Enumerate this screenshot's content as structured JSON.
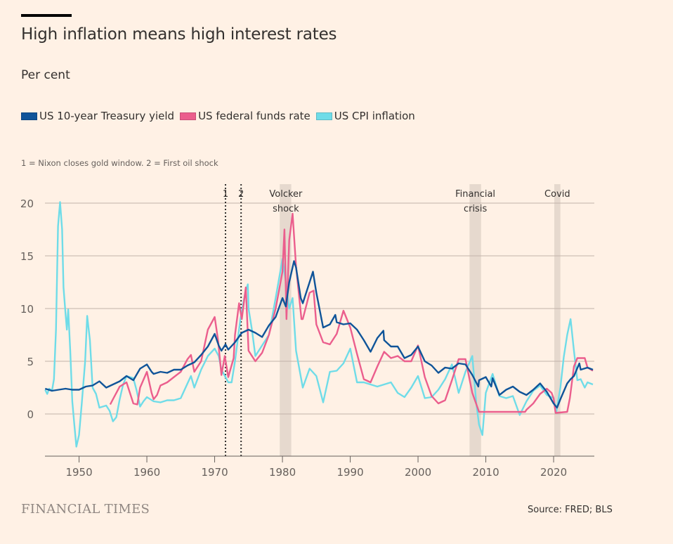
{
  "header": {
    "title": "High inflation means high interest rates",
    "subtitle": "Per cent",
    "note": "1 = Nixon closes gold window. 2 = First oil shock"
  },
  "legend": [
    {
      "label": "US 10-year Treasury yield",
      "color": "#0f5499"
    },
    {
      "label": "US federal funds rate",
      "color": "#eb5e8d"
    },
    {
      "label": "US CPI inflation",
      "color": "#6fdce8"
    }
  ],
  "footer": {
    "brand": "FINANCIAL TIMES",
    "source": "Source: FRED; BLS"
  },
  "chart_data": {
    "type": "line",
    "title": "High inflation means high interest rates",
    "ylabel": "Per cent",
    "xlabel": "",
    "xlim": [
      1945,
      2026
    ],
    "ylim": [
      -4,
      21
    ],
    "yticks": [
      0,
      5,
      10,
      15,
      20
    ],
    "xticks": [
      1950,
      1960,
      1970,
      1980,
      1990,
      2000,
      2010,
      2020
    ],
    "grid": true,
    "legend_position": "top-left",
    "vlines": [
      {
        "label": "1",
        "x": 1971.6,
        "style": "dotted"
      },
      {
        "label": "2",
        "x": 1973.9,
        "style": "dotted"
      }
    ],
    "shaded_bands": [
      {
        "label": "Volcker shock",
        "label_lines": [
          "Volcker",
          "shock"
        ],
        "from": 1979.6,
        "to": 1981.3
      },
      {
        "label": "Financial crisis",
        "label_lines": [
          "Financial",
          "crisis"
        ],
        "from": 2007.6,
        "to": 2009.3
      },
      {
        "label": "Covid",
        "label_lines": [
          "Covid"
        ],
        "from": 2020.1,
        "to": 2021.0
      }
    ],
    "series": [
      {
        "name": "US 10-year Treasury yield",
        "color": "#0f5499",
        "points": [
          [
            1945,
            2.4
          ],
          [
            1946,
            2.2
          ],
          [
            1947,
            2.3
          ],
          [
            1948,
            2.4
          ],
          [
            1949,
            2.3
          ],
          [
            1950,
            2.3
          ],
          [
            1951,
            2.6
          ],
          [
            1952,
            2.7
          ],
          [
            1953,
            3.1
          ],
          [
            1954,
            2.5
          ],
          [
            1955,
            2.8
          ],
          [
            1956,
            3.1
          ],
          [
            1957,
            3.6
          ],
          [
            1958,
            3.2
          ],
          [
            1959,
            4.3
          ],
          [
            1960,
            4.7
          ],
          [
            1960.7,
            4.0
          ],
          [
            1961,
            3.8
          ],
          [
            1962,
            4.0
          ],
          [
            1963,
            3.9
          ],
          [
            1964,
            4.2
          ],
          [
            1965,
            4.2
          ],
          [
            1966,
            4.6
          ],
          [
            1967,
            4.9
          ],
          [
            1968,
            5.6
          ],
          [
            1969,
            6.4
          ],
          [
            1970,
            7.6
          ],
          [
            1970.6,
            6.5
          ],
          [
            1971,
            6.0
          ],
          [
            1971.6,
            6.6
          ],
          [
            1972,
            6.1
          ],
          [
            1973,
            6.8
          ],
          [
            1974,
            7.7
          ],
          [
            1975,
            8.0
          ],
          [
            1976,
            7.7
          ],
          [
            1977,
            7.3
          ],
          [
            1978,
            8.4
          ],
          [
            1979,
            9.2
          ],
          [
            1980,
            11.0
          ],
          [
            1980.5,
            10.2
          ],
          [
            1981,
            12.5
          ],
          [
            1981.7,
            14.5
          ],
          [
            1982,
            13.9
          ],
          [
            1982.7,
            11.0
          ],
          [
            1983,
            10.5
          ],
          [
            1984,
            12.5
          ],
          [
            1984.5,
            13.5
          ],
          [
            1985,
            11.5
          ],
          [
            1986,
            8.2
          ],
          [
            1987,
            8.5
          ],
          [
            1987.8,
            9.4
          ],
          [
            1988,
            8.7
          ],
          [
            1989,
            8.5
          ],
          [
            1990,
            8.6
          ],
          [
            1991,
            8.0
          ],
          [
            1992,
            7.0
          ],
          [
            1993,
            5.9
          ],
          [
            1994,
            7.2
          ],
          [
            1994.9,
            7.9
          ],
          [
            1995,
            7.0
          ],
          [
            1996,
            6.4
          ],
          [
            1997,
            6.4
          ],
          [
            1998,
            5.3
          ],
          [
            1999,
            5.6
          ],
          [
            2000,
            6.4
          ],
          [
            2001,
            5.0
          ],
          [
            2002,
            4.6
          ],
          [
            2003,
            3.9
          ],
          [
            2004,
            4.4
          ],
          [
            2005,
            4.3
          ],
          [
            2006,
            4.8
          ],
          [
            2007,
            4.7
          ],
          [
            2008,
            3.7
          ],
          [
            2008.9,
            2.6
          ],
          [
            2009,
            3.2
          ],
          [
            2010,
            3.5
          ],
          [
            2010.8,
            2.6
          ],
          [
            2011,
            3.4
          ],
          [
            2012,
            1.8
          ],
          [
            2013,
            2.3
          ],
          [
            2014,
            2.6
          ],
          [
            2015,
            2.1
          ],
          [
            2016,
            1.8
          ],
          [
            2017,
            2.3
          ],
          [
            2018,
            2.9
          ],
          [
            2019,
            2.1
          ],
          [
            2020,
            1.0
          ],
          [
            2020.5,
            0.6
          ],
          [
            2021,
            1.4
          ],
          [
            2022,
            2.9
          ],
          [
            2022.5,
            3.3
          ],
          [
            2023,
            3.6
          ],
          [
            2023.8,
            4.8
          ],
          [
            2024,
            4.2
          ],
          [
            2025,
            4.4
          ],
          [
            2025.8,
            4.2
          ]
        ]
      },
      {
        "name": "US federal funds rate",
        "color": "#eb5e8d",
        "points": [
          [
            1954.6,
            0.9
          ],
          [
            1955,
            1.4
          ],
          [
            1956,
            2.6
          ],
          [
            1957,
            3.0
          ],
          [
            1958,
            1.0
          ],
          [
            1958.6,
            0.9
          ],
          [
            1959,
            2.5
          ],
          [
            1960,
            4.0
          ],
          [
            1960.7,
            2.0
          ],
          [
            1961,
            1.4
          ],
          [
            1961.5,
            1.8
          ],
          [
            1962,
            2.7
          ],
          [
            1963,
            3.0
          ],
          [
            1964,
            3.5
          ],
          [
            1965,
            4.0
          ],
          [
            1966,
            5.2
          ],
          [
            1966.5,
            5.6
          ],
          [
            1967,
            4.0
          ],
          [
            1968,
            5.0
          ],
          [
            1969,
            8.0
          ],
          [
            1970,
            9.2
          ],
          [
            1970.5,
            7.0
          ],
          [
            1971,
            3.7
          ],
          [
            1971.5,
            5.5
          ],
          [
            1972,
            3.5
          ],
          [
            1972.8,
            5.3
          ],
          [
            1973,
            7.5
          ],
          [
            1973.6,
            10.5
          ],
          [
            1974,
            9.0
          ],
          [
            1974.6,
            12.0
          ],
          [
            1975,
            6.0
          ],
          [
            1976,
            5.0
          ],
          [
            1977,
            5.8
          ],
          [
            1978,
            7.5
          ],
          [
            1979,
            10.0
          ],
          [
            1980,
            13.5
          ],
          [
            1980.3,
            17.5
          ],
          [
            1980.6,
            9.0
          ],
          [
            1981,
            16.5
          ],
          [
            1981.5,
            19.0
          ],
          [
            1982,
            14.0
          ],
          [
            1982.8,
            9.0
          ],
          [
            1983,
            9.0
          ],
          [
            1984,
            11.5
          ],
          [
            1984.6,
            11.7
          ],
          [
            1985,
            8.5
          ],
          [
            1986,
            6.8
          ],
          [
            1987,
            6.6
          ],
          [
            1988,
            7.6
          ],
          [
            1989,
            9.8
          ],
          [
            1990,
            8.2
          ],
          [
            1991,
            5.7
          ],
          [
            1992,
            3.3
          ],
          [
            1993,
            3.0
          ],
          [
            1994,
            4.5
          ],
          [
            1995,
            5.9
          ],
          [
            1996,
            5.3
          ],
          [
            1997,
            5.5
          ],
          [
            1998,
            5.0
          ],
          [
            1999,
            5.0
          ],
          [
            2000,
            6.5
          ],
          [
            2001,
            3.5
          ],
          [
            2002,
            1.7
          ],
          [
            2003,
            1.0
          ],
          [
            2004,
            1.3
          ],
          [
            2005,
            3.2
          ],
          [
            2006,
            5.2
          ],
          [
            2007,
            5.2
          ],
          [
            2008,
            2.0
          ],
          [
            2009,
            0.2
          ],
          [
            2015.8,
            0.2
          ],
          [
            2016,
            0.4
          ],
          [
            2017,
            1.0
          ],
          [
            2018,
            1.9
          ],
          [
            2019,
            2.4
          ],
          [
            2019.7,
            2.0
          ],
          [
            2020,
            1.5
          ],
          [
            2020.3,
            0.1
          ],
          [
            2022,
            0.2
          ],
          [
            2022.4,
            1.5
          ],
          [
            2023,
            4.5
          ],
          [
            2023.5,
            5.3
          ],
          [
            2024.6,
            5.3
          ],
          [
            2025,
            4.4
          ],
          [
            2025.8,
            4.1
          ]
        ]
      },
      {
        "name": "US CPI inflation",
        "color": "#6fdce8",
        "points": [
          [
            1945,
            2.3
          ],
          [
            1945.3,
            1.9
          ],
          [
            1945.6,
            2.4
          ],
          [
            1946,
            2.2
          ],
          [
            1946.3,
            3.3
          ],
          [
            1946.6,
            8.0
          ],
          [
            1946.9,
            17.8
          ],
          [
            1947.2,
            20.1
          ],
          [
            1947.5,
            17.5
          ],
          [
            1947.7,
            12.0
          ],
          [
            1948,
            9.5
          ],
          [
            1948.2,
            8.0
          ],
          [
            1948.4,
            9.9
          ],
          [
            1948.7,
            6.0
          ],
          [
            1949,
            1.2
          ],
          [
            1949.3,
            -1.0
          ],
          [
            1949.6,
            -3.1
          ],
          [
            1950,
            -2.0
          ],
          [
            1950.4,
            1.0
          ],
          [
            1950.9,
            5.0
          ],
          [
            1951.2,
            9.3
          ],
          [
            1951.6,
            7.0
          ],
          [
            1952,
            2.5
          ],
          [
            1952.5,
            1.9
          ],
          [
            1953,
            0.6
          ],
          [
            1954,
            0.8
          ],
          [
            1954.5,
            0.3
          ],
          [
            1955,
            -0.7
          ],
          [
            1955.5,
            -0.3
          ],
          [
            1956,
            1.4
          ],
          [
            1956.5,
            2.8
          ],
          [
            1957,
            3.6
          ],
          [
            1958,
            3.4
          ],
          [
            1958.5,
            2.2
          ],
          [
            1959,
            0.7
          ],
          [
            1959.5,
            1.2
          ],
          [
            1960,
            1.6
          ],
          [
            1961,
            1.2
          ],
          [
            1962,
            1.1
          ],
          [
            1963,
            1.3
          ],
          [
            1964,
            1.3
          ],
          [
            1965,
            1.5
          ],
          [
            1966,
            2.9
          ],
          [
            1966.5,
            3.6
          ],
          [
            1967,
            2.5
          ],
          [
            1968,
            4.2
          ],
          [
            1969,
            5.5
          ],
          [
            1970,
            6.2
          ],
          [
            1970.6,
            5.5
          ],
          [
            1971,
            4.2
          ],
          [
            1971.6,
            3.5
          ],
          [
            1972,
            3.0
          ],
          [
            1972.5,
            3.0
          ],
          [
            1973,
            5.0
          ],
          [
            1973.8,
            9.0
          ],
          [
            1974.5,
            11.5
          ],
          [
            1974.9,
            12.3
          ],
          [
            1975,
            10.0
          ],
          [
            1975.5,
            8.0
          ],
          [
            1976,
            5.5
          ],
          [
            1977,
            6.5
          ],
          [
            1978,
            7.5
          ],
          [
            1979,
            11.0
          ],
          [
            1980,
            14.7
          ],
          [
            1980.5,
            12.5
          ],
          [
            1981,
            10.0
          ],
          [
            1981.5,
            11.0
          ],
          [
            1982,
            6.0
          ],
          [
            1983,
            2.5
          ],
          [
            1984,
            4.3
          ],
          [
            1985,
            3.6
          ],
          [
            1986,
            1.1
          ],
          [
            1987,
            4.0
          ],
          [
            1988,
            4.1
          ],
          [
            1989,
            4.8
          ],
          [
            1990,
            6.2
          ],
          [
            1991,
            3.0
          ],
          [
            1992,
            3.0
          ],
          [
            1993,
            2.8
          ],
          [
            1994,
            2.6
          ],
          [
            1995,
            2.8
          ],
          [
            1996,
            3.0
          ],
          [
            1997,
            2.0
          ],
          [
            1998,
            1.6
          ],
          [
            1999,
            2.5
          ],
          [
            2000,
            3.6
          ],
          [
            2001,
            1.5
          ],
          [
            2002,
            1.6
          ],
          [
            2003,
            2.3
          ],
          [
            2004,
            3.3
          ],
          [
            2005,
            4.7
          ],
          [
            2006,
            2.0
          ],
          [
            2007,
            4.0
          ],
          [
            2008,
            5.5
          ],
          [
            2008.6,
            1.0
          ],
          [
            2009,
            -1.0
          ],
          [
            2009.5,
            -2.0
          ],
          [
            2010,
            2.0
          ],
          [
            2011,
            3.8
          ],
          [
            2012,
            1.7
          ],
          [
            2013,
            1.5
          ],
          [
            2014,
            1.7
          ],
          [
            2015,
            -0.1
          ],
          [
            2016,
            1.2
          ],
          [
            2017,
            2.2
          ],
          [
            2018,
            2.7
          ],
          [
            2019,
            1.8
          ],
          [
            2020,
            1.5
          ],
          [
            2020.4,
            0.2
          ],
          [
            2021,
            2.5
          ],
          [
            2021.5,
            5.4
          ],
          [
            2022,
            7.5
          ],
          [
            2022.5,
            9.0
          ],
          [
            2023,
            6.0
          ],
          [
            2023.5,
            3.2
          ],
          [
            2024,
            3.3
          ],
          [
            2024.6,
            2.5
          ],
          [
            2025,
            3.0
          ],
          [
            2025.8,
            2.8
          ]
        ]
      }
    ]
  }
}
